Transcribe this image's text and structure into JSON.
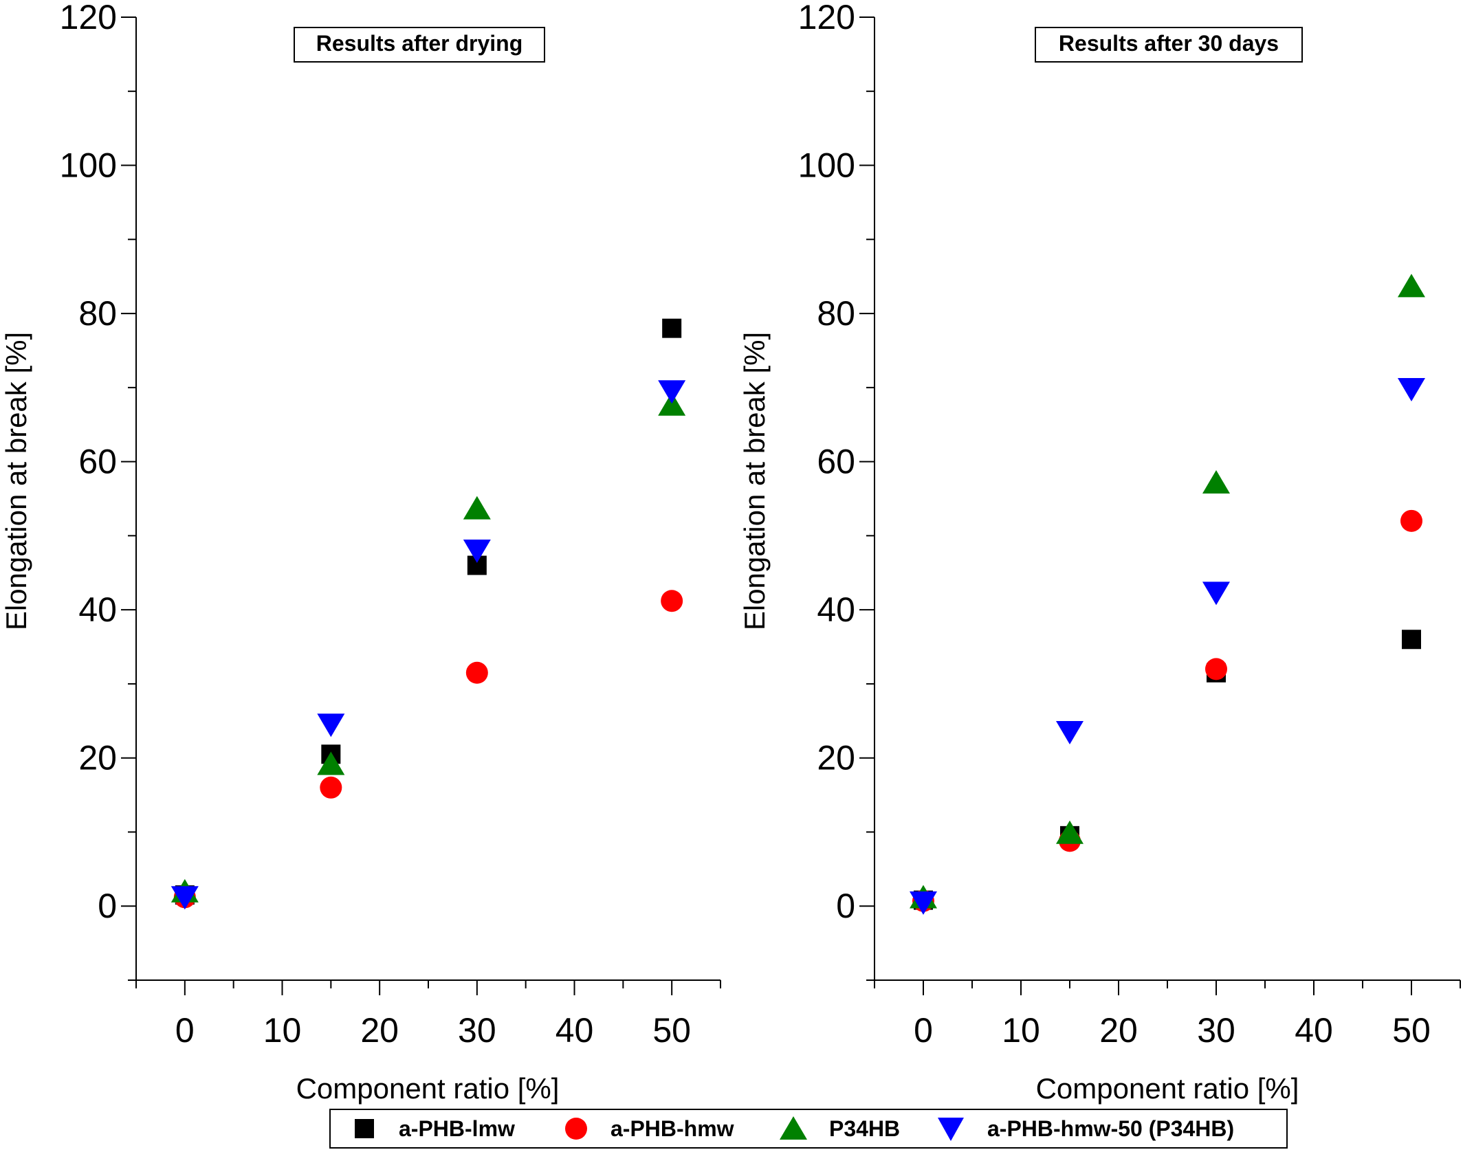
{
  "colors": {
    "a-PHB-lmw": "#000000",
    "a-PHB-hmw": "#ff0000",
    "P34HB": "#008000",
    "a-PHB-hmw-50 (P34HB)": "#0000ff"
  },
  "legend": [
    {
      "label": "a-PHB-lmw",
      "marker": "square",
      "color": "#000000"
    },
    {
      "label": "a-PHB-hmw",
      "marker": "circle",
      "color": "#ff0000"
    },
    {
      "label": "P34HB",
      "marker": "triangle-up",
      "color": "#008000"
    },
    {
      "label": "a-PHB-hmw-50 (P34HB)",
      "marker": "triangle-down",
      "color": "#0000ff"
    }
  ],
  "chart_data": [
    {
      "type": "scatter",
      "title": "Results after drying",
      "xlabel": "Component ratio [%]",
      "ylabel": "Elongation at break [%]",
      "xlim": [
        -5,
        55
      ],
      "ylim": [
        -10,
        120
      ],
      "xticks": [
        0,
        10,
        20,
        30,
        40,
        50
      ],
      "yticks": [
        0,
        20,
        40,
        60,
        80,
        100,
        120
      ],
      "x": [
        0,
        15,
        30,
        50
      ],
      "series": [
        {
          "name": "a-PHB-lmw",
          "marker": "square",
          "color": "#000000",
          "values": [
            1.5,
            20.5,
            46,
            78
          ]
        },
        {
          "name": "a-PHB-hmw",
          "marker": "circle",
          "color": "#ff0000",
          "values": [
            1.2,
            16,
            31.5,
            41.2
          ]
        },
        {
          "name": "P34HB",
          "marker": "triangle-up",
          "color": "#008000",
          "values": [
            1.8,
            19,
            53.5,
            67.5
          ]
        },
        {
          "name": "a-PHB-hmw-50 (P34HB)",
          "marker": "triangle-down",
          "color": "#0000ff",
          "values": [
            1.2,
            24.5,
            48,
            69.5
          ]
        }
      ]
    },
    {
      "type": "scatter",
      "title": "Results after 30 days",
      "xlabel": "Component ratio [%]",
      "ylabel": "Elongation at break [%]",
      "xlim": [
        -5,
        55
      ],
      "ylim": [
        -10,
        120
      ],
      "xticks": [
        0,
        10,
        20,
        30,
        40,
        50
      ],
      "yticks": [
        0,
        20,
        40,
        60,
        80,
        100,
        120
      ],
      "x": [
        0,
        15,
        30,
        50
      ],
      "series": [
        {
          "name": "a-PHB-lmw",
          "marker": "square",
          "color": "#000000",
          "values": [
            0.8,
            9.5,
            31.5,
            36
          ]
        },
        {
          "name": "a-PHB-hmw",
          "marker": "circle",
          "color": "#ff0000",
          "values": [
            0.7,
            8.8,
            32,
            52
          ]
        },
        {
          "name": "P34HB",
          "marker": "triangle-up",
          "color": "#008000",
          "values": [
            1.0,
            9.7,
            57,
            83.5
          ]
        },
        {
          "name": "a-PHB-hmw-50 (P34HB)",
          "marker": "triangle-down",
          "color": "#0000ff",
          "values": [
            0.5,
            23.5,
            42.3,
            69.8
          ]
        }
      ]
    }
  ]
}
